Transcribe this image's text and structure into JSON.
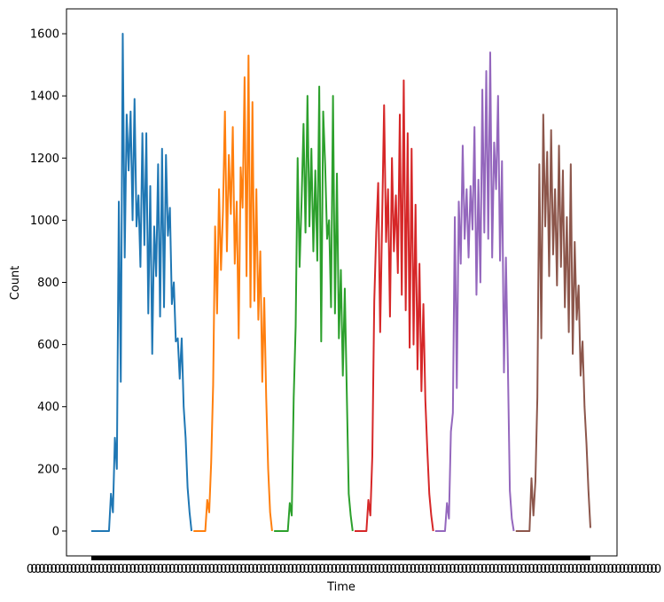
{
  "chart_data": {
    "type": "line",
    "xlabel": "Time",
    "ylabel": "Count",
    "ylim": [
      -80,
      1680
    ],
    "yticks": [
      0,
      200,
      400,
      600,
      800,
      1000,
      1200,
      1400,
      1600
    ],
    "xtick_labels_overplotted": true,
    "series": [
      {
        "color": "#1f77b4",
        "values": [
          0,
          0,
          0,
          0,
          0,
          0,
          0,
          0,
          0,
          0,
          120,
          60,
          300,
          200,
          1060,
          480,
          1600,
          880,
          1340,
          1160,
          1350,
          1000,
          1390,
          980,
          1080,
          850,
          1280,
          920,
          1280,
          700,
          1110,
          570,
          980,
          820,
          1180,
          690,
          1230,
          720,
          1210,
          950,
          1040,
          730,
          800,
          610,
          620,
          490,
          620,
          400,
          300,
          140,
          60,
          0
        ]
      },
      {
        "color": "#ff7f0e",
        "values": [
          0,
          0,
          0,
          0,
          0,
          0,
          0,
          100,
          60,
          220,
          470,
          980,
          700,
          1100,
          840,
          1030,
          1350,
          900,
          1210,
          1020,
          1300,
          860,
          1060,
          620,
          1170,
          1040,
          1460,
          820,
          1530,
          720,
          1380,
          740,
          1100,
          680,
          900,
          480,
          750,
          430,
          200,
          60,
          0
        ]
      },
      {
        "color": "#2ca02c",
        "values": [
          0,
          0,
          0,
          0,
          0,
          0,
          0,
          0,
          90,
          50,
          430,
          660,
          1200,
          850,
          1060,
          1310,
          960,
          1400,
          980,
          1230,
          900,
          1160,
          870,
          1430,
          610,
          1350,
          1180,
          940,
          1000,
          720,
          1400,
          700,
          1150,
          620,
          840,
          500,
          780,
          450,
          120,
          50,
          0
        ]
      },
      {
        "color": "#d62728",
        "values": [
          0,
          0,
          0,
          0,
          0,
          0,
          0,
          100,
          50,
          240,
          740,
          960,
          1120,
          640,
          1000,
          1370,
          930,
          1100,
          690,
          1200,
          900,
          1080,
          830,
          1340,
          760,
          1450,
          710,
          1280,
          590,
          1230,
          600,
          1050,
          520,
          860,
          450,
          730,
          420,
          260,
          120,
          50,
          0
        ]
      },
      {
        "color": "#9467bd",
        "values": [
          0,
          0,
          0,
          0,
          0,
          0,
          90,
          40,
          320,
          380,
          1010,
          460,
          1060,
          860,
          1240,
          940,
          1100,
          880,
          1110,
          970,
          1300,
          760,
          1130,
          800,
          1420,
          960,
          1480,
          940,
          1540,
          880,
          1250,
          1100,
          1400,
          870,
          1190,
          510,
          880,
          530,
          130,
          40,
          0
        ]
      },
      {
        "color": "#8c564b",
        "values": [
          0,
          0,
          0,
          0,
          0,
          0,
          0,
          0,
          170,
          50,
          160,
          430,
          1180,
          620,
          1340,
          980,
          1220,
          820,
          1290,
          890,
          1100,
          790,
          1240,
          850,
          1160,
          720,
          1010,
          640,
          1180,
          570,
          930,
          680,
          790,
          500,
          610,
          400,
          280,
          130,
          10
        ]
      }
    ]
  }
}
